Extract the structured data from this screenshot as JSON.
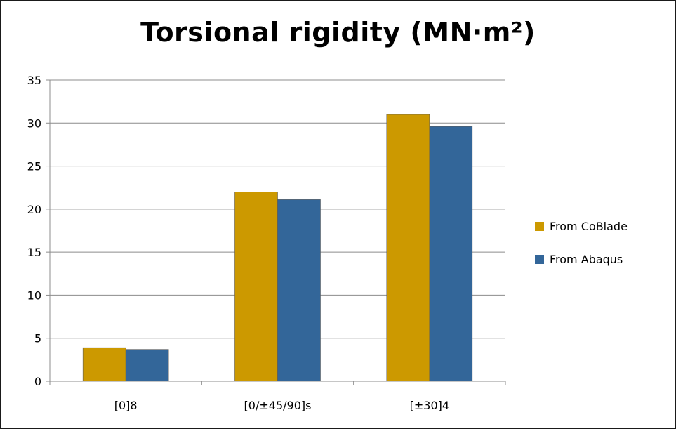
{
  "chart_data": {
    "type": "bar",
    "title": "Torsional rigidity (MN·m²)",
    "xlabel": "",
    "ylabel": "",
    "categories": [
      "[0]8",
      "[0/±45/90]s",
      "[±30]4"
    ],
    "series": [
      {
        "name": "From CoBlade",
        "values": [
          3.9,
          22.0,
          31.0
        ],
        "color": "#CC9900"
      },
      {
        "name": "From Abaqus",
        "values": [
          3.7,
          21.1,
          29.6
        ],
        "color": "#336699"
      }
    ],
    "ylim": [
      0,
      35
    ],
    "yticks": [
      0,
      5,
      10,
      15,
      20,
      25,
      30,
      35
    ],
    "grid": true,
    "legend_position": "right"
  },
  "colors": {
    "gridline": "#8c8c8c",
    "axis": "#8c8c8c",
    "bar_edge": "#5a5a5a"
  }
}
